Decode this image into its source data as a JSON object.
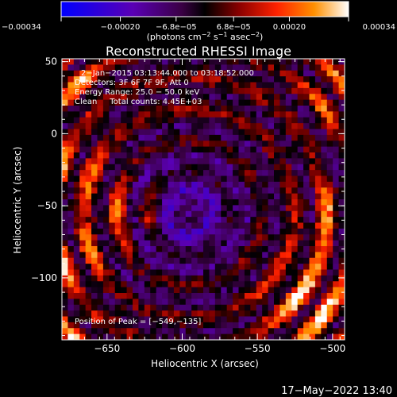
{
  "chart_data": {
    "type": "heatmap",
    "title": "Reconstructed RHESSI Image",
    "xlabel": "Heliocentric X (arcsec)",
    "ylabel": "Heliocentric Y (arcsec)",
    "xlim": [
      -680,
      -492
    ],
    "ylim": [
      -143,
      52
    ],
    "x_ticks": [
      -650,
      -600,
      -550,
      -500
    ],
    "y_ticks": [
      50,
      0,
      -50,
      -100
    ],
    "x_tick_labels": [
      "−650",
      "−600",
      "−550",
      "−500"
    ],
    "y_tick_labels": [
      "50",
      "0",
      "−50",
      "−100"
    ],
    "colorbar": {
      "min": -0.00034,
      "max": 0.00034,
      "ticks": [
        -0.00034,
        -0.0002,
        -6.8e-05,
        6.8e-05,
        0.0002,
        0.00034
      ],
      "tick_labels": [
        "−0.00034",
        "−0.00020",
        "−6.8e−05",
        "6.8e−05",
        "0.00020",
        "0.00034"
      ],
      "units": {
        "base": "(photons cm",
        "sup1": "−2",
        "mid": " s",
        "sup2": "−1",
        "mid2": " asec",
        "sup3": "−2",
        "end": ")"
      },
      "colors": [
        "#0000ff",
        "#5a00b4",
        "#3a0044",
        "#000000",
        "#7a0000",
        "#ff2000",
        "#ff9000",
        "#ffffff"
      ]
    },
    "annotations": [
      "2−Jan−2015 03:13:44.000 to 03:18:52.000",
      "Detectors: 3F 6F 7F 9F, Att 0",
      "Energy Range: 25.0 − 50.0 keV",
      "Clean     Total counts: 4.45E+03"
    ],
    "peak_label": "Position of Peak = [−549,−135]",
    "peak": [
      -549,
      -135
    ]
  },
  "footer": {
    "timestamp": "17−May−2022 13:40"
  }
}
